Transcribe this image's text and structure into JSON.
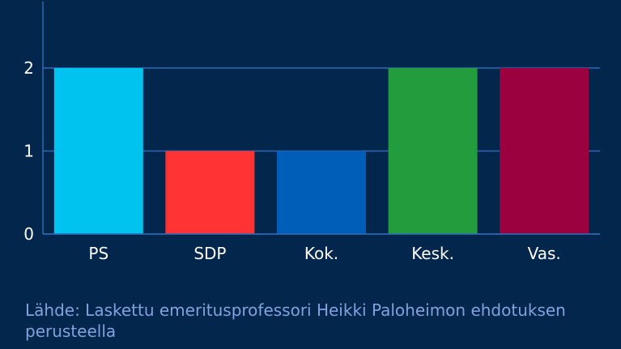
{
  "chart_data": {
    "type": "bar",
    "categories": [
      "PS",
      "SDP",
      "Kok.",
      "Kesk.",
      "Vas."
    ],
    "values": [
      2,
      1,
      1,
      2,
      2
    ],
    "colors": [
      "#00c3ef",
      "#ff3333",
      "#005eb8",
      "#229c3d",
      "#9b003f"
    ],
    "yticks": [
      0,
      1,
      2
    ],
    "ylim": [
      0,
      2.8
    ],
    "grid": true,
    "title": "",
    "xlabel": "",
    "ylabel": ""
  },
  "source_text": "Lähde: Laskettu emeritusprofessori Heikki Paloheimon ehdotuksen perusteella"
}
